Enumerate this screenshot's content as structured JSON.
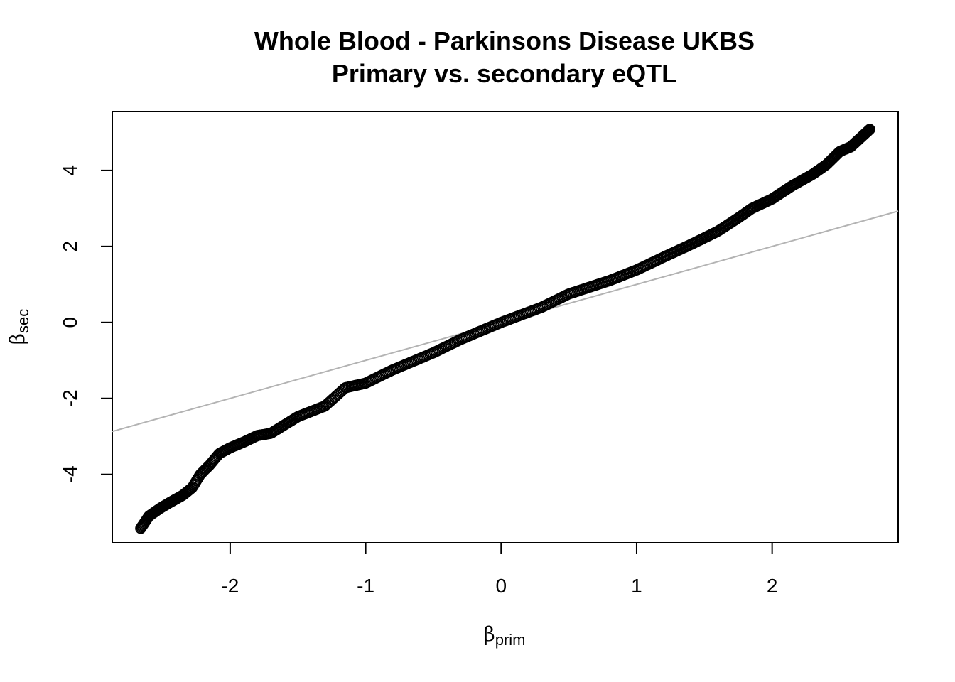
{
  "chart_data": {
    "type": "scatter",
    "title": "Whole Blood - Parkinsons Disease UKBS",
    "subtitle": "Primary vs. secondary eQTL",
    "xlabel": {
      "symbol": "β",
      "subscript": "prim"
    },
    "ylabel": {
      "symbol": "β",
      "subscript": "sec"
    },
    "xlim": [
      -2.87,
      2.93
    ],
    "ylim": [
      -5.8,
      5.55
    ],
    "xticks": [
      -2,
      -1,
      0,
      1,
      2
    ],
    "yticks": [
      -4,
      -2,
      0,
      2,
      4
    ],
    "grid": false,
    "legend": "none",
    "point_style": "open-circle",
    "point_color": "#000000",
    "reference_line": {
      "slope": 1,
      "intercept": 0,
      "color": "#b3b3b3"
    },
    "curve_knots": [
      [
        -2.66,
        -5.42
      ],
      [
        -2.6,
        -5.1
      ],
      [
        -2.52,
        -4.9
      ],
      [
        -2.45,
        -4.75
      ],
      [
        -2.35,
        -4.55
      ],
      [
        -2.28,
        -4.35
      ],
      [
        -2.22,
        -4.0
      ],
      [
        -2.15,
        -3.75
      ],
      [
        -2.08,
        -3.45
      ],
      [
        -2.0,
        -3.3
      ],
      [
        -1.9,
        -3.15
      ],
      [
        -1.8,
        -2.98
      ],
      [
        -1.7,
        -2.92
      ],
      [
        -1.6,
        -2.7
      ],
      [
        -1.5,
        -2.48
      ],
      [
        -1.3,
        -2.2
      ],
      [
        -1.15,
        -1.72
      ],
      [
        -1.0,
        -1.6
      ],
      [
        -0.8,
        -1.25
      ],
      [
        -0.5,
        -0.8
      ],
      [
        -0.3,
        -0.45
      ],
      [
        0.0,
        0.0
      ],
      [
        0.3,
        0.4
      ],
      [
        0.5,
        0.75
      ],
      [
        0.8,
        1.1
      ],
      [
        1.0,
        1.38
      ],
      [
        1.2,
        1.72
      ],
      [
        1.4,
        2.05
      ],
      [
        1.6,
        2.4
      ],
      [
        1.75,
        2.75
      ],
      [
        1.85,
        3.0
      ],
      [
        2.0,
        3.25
      ],
      [
        2.15,
        3.6
      ],
      [
        2.3,
        3.9
      ],
      [
        2.4,
        4.15
      ],
      [
        2.5,
        4.5
      ],
      [
        2.58,
        4.62
      ],
      [
        2.65,
        4.85
      ],
      [
        2.72,
        5.08
      ]
    ],
    "n_points": 600
  }
}
